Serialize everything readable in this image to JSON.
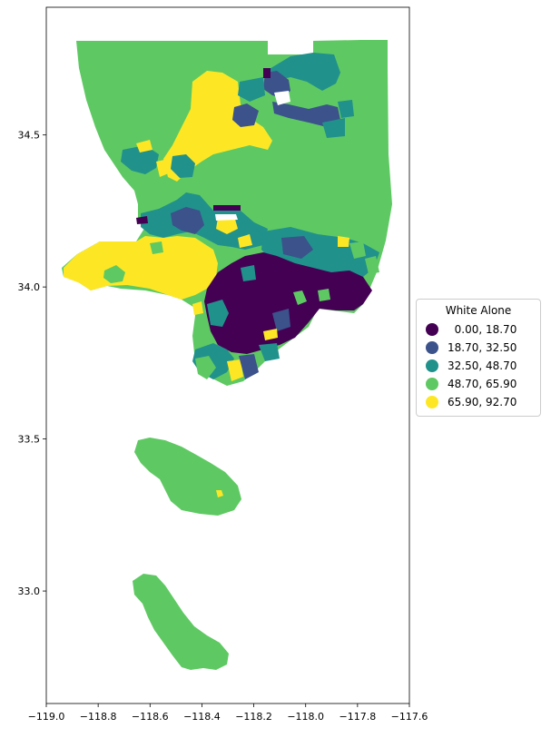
{
  "map": {
    "axes": {
      "x_ticks": [
        "−119.0",
        "−118.8",
        "−118.6",
        "−118.4",
        "−118.2",
        "−118.0",
        "−117.8",
        "−117.6"
      ],
      "y_ticks": [
        "33.0",
        "33.5",
        "34.0",
        "34.5"
      ],
      "x_range": [
        -119.0,
        -117.6
      ],
      "y_range": [
        32.63,
        34.92
      ]
    },
    "legend": {
      "title": "White Alone",
      "placement": "right",
      "entries": [
        {
          "label": "  0.00, 18.70",
          "color": "#440154"
        },
        {
          "label": "18.70, 32.50",
          "color": "#3b528b"
        },
        {
          "label": "32.50, 48.70",
          "color": "#21918c"
        },
        {
          "label": "48.70, 65.90",
          "color": "#5ec962"
        },
        {
          "label": "65.90, 92.70",
          "color": "#fde725"
        }
      ]
    }
  }
}
